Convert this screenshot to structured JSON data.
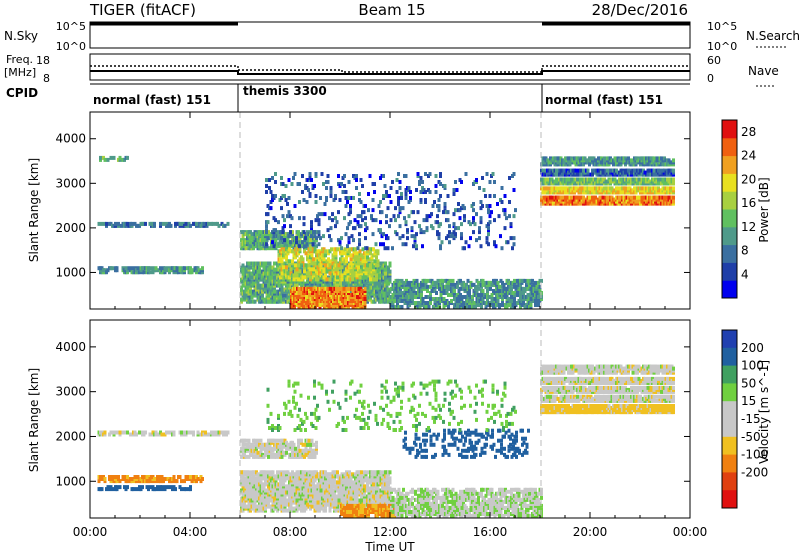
{
  "header": {
    "title": "TIGER (fitACF)",
    "beam": "Beam 15",
    "date": "28/Dec/2016"
  },
  "strips": {
    "nsky_label": "N.Sky",
    "nsearch_label": "N.Search",
    "nsky_ticks": [
      "10^5",
      "10^0"
    ],
    "nsearch_ticks": [
      "10^5",
      "10^0"
    ],
    "freq_label_1": "Freq.",
    "freq_label_2": "[MHz]",
    "freq_ticks": [
      "18",
      "8"
    ],
    "nave_label": "Nave",
    "nave_ticks": [
      "60",
      "0"
    ],
    "cpid_label": "CPID"
  },
  "cpid_segments": [
    {
      "label": "normal (fast) 151",
      "start_hour": 0
    },
    {
      "label": "themis 3300",
      "start_hour": 6
    },
    {
      "label": "normal (fast) 151",
      "start_hour": 18
    }
  ],
  "x_axis": {
    "label": "Time UT",
    "ticks": [
      "00:00",
      "04:00",
      "08:00",
      "12:00",
      "16:00",
      "20:00",
      "00:00"
    ]
  },
  "colors": {
    "power_scale": [
      "#0000ee",
      "#1f3fa8",
      "#3a6fa0",
      "#4f9a8a",
      "#60c060",
      "#a8d040",
      "#e8e020",
      "#f0a020",
      "#f06010",
      "#e01010"
    ],
    "velocity_scale": [
      "#2040b0",
      "#2060a0",
      "#40a060",
      "#70d040",
      "#c8c8c8",
      "#c8c8c8",
      "#f0c020",
      "#f08010",
      "#e04010",
      "#e01010"
    ]
  },
  "chart_data": [
    {
      "type": "heatmap",
      "title": "Power",
      "xlabel": "Time UT",
      "ylabel": "Slant Range [km]",
      "xlim_hours": [
        0,
        24
      ],
      "ylim": [
        180,
        4600
      ],
      "yticks": [
        1000,
        2000,
        3000,
        4000
      ],
      "colorbar": {
        "label": "Power [dB]",
        "ticks": [
          4,
          8,
          12,
          16,
          20,
          24,
          28
        ],
        "range": [
          0,
          30
        ]
      },
      "regions": [
        {
          "t0": 0.3,
          "t1": 5.5,
          "r0": 2000,
          "r1": 2080,
          "value": 8,
          "density": 0.5
        },
        {
          "t0": 0.3,
          "t1": 4.5,
          "r0": 960,
          "r1": 1060,
          "value": 10,
          "density": 0.5
        },
        {
          "t0": 0.3,
          "t1": 1.5,
          "r0": 3480,
          "r1": 3540,
          "value": 12,
          "density": 0.5
        },
        {
          "t0": 6.0,
          "t1": 9.0,
          "r0": 1500,
          "r1": 1900,
          "value": 12,
          "density": 0.55
        },
        {
          "t0": 6.0,
          "t1": 12.0,
          "r0": 300,
          "r1": 1200,
          "value": 12,
          "density": 0.6
        },
        {
          "t0": 8.0,
          "t1": 11.0,
          "r0": 180,
          "r1": 600,
          "value": 24,
          "density": 0.75
        },
        {
          "t0": 7.5,
          "t1": 11.5,
          "r0": 800,
          "r1": 1500,
          "value": 18,
          "density": 0.35
        },
        {
          "t0": 12.0,
          "t1": 18.0,
          "r0": 180,
          "r1": 800,
          "value": 10,
          "density": 0.45
        },
        {
          "t0": 7.0,
          "t1": 17.0,
          "r0": 1500,
          "r1": 3200,
          "value": 6,
          "density": 0.08
        },
        {
          "t0": 18.0,
          "t1": 23.3,
          "r0": 3380,
          "r1": 3550,
          "value": 10,
          "density": 0.7
        },
        {
          "t0": 18.0,
          "t1": 23.3,
          "r0": 3150,
          "r1": 3250,
          "value": 6,
          "density": 0.8
        },
        {
          "t0": 18.0,
          "t1": 23.3,
          "r0": 2950,
          "r1": 3050,
          "value": 14,
          "density": 0.8
        },
        {
          "t0": 18.0,
          "t1": 23.3,
          "r0": 2750,
          "r1": 2850,
          "value": 20,
          "density": 0.8
        },
        {
          "t0": 18.0,
          "t1": 23.3,
          "r0": 2500,
          "r1": 2650,
          "value": 24,
          "density": 0.85
        }
      ]
    },
    {
      "type": "heatmap",
      "title": "Velocity",
      "xlabel": "Time UT",
      "ylabel": "Slant Range [km]",
      "xlim_hours": [
        0,
        24
      ],
      "ylim": [
        180,
        4600
      ],
      "yticks": [
        1000,
        2000,
        3000,
        4000
      ],
      "colorbar": {
        "label": "Velocity [m s^-1]",
        "ticks": [
          200,
          100,
          50,
          15,
          -15,
          -50,
          -100,
          -200
        ]
      },
      "regions": [
        {
          "t0": 0.3,
          "t1": 5.5,
          "r0": 2000,
          "r1": 2080,
          "value": 0,
          "density": 0.5
        },
        {
          "t0": 0.3,
          "t1": 4.5,
          "r0": 960,
          "r1": 1060,
          "value": -60,
          "density": 0.5
        },
        {
          "t0": 0.3,
          "t1": 4.0,
          "r0": 780,
          "r1": 860,
          "value": 120,
          "density": 0.4
        },
        {
          "t0": 6.0,
          "t1": 9.0,
          "r0": 1500,
          "r1": 1900,
          "value": 0,
          "density": 0.55
        },
        {
          "t0": 6.0,
          "t1": 12.0,
          "r0": 300,
          "r1": 1200,
          "value": 0,
          "density": 0.6
        },
        {
          "t0": 10.0,
          "t1": 12.5,
          "r0": 180,
          "r1": 450,
          "value": -60,
          "density": 0.6
        },
        {
          "t0": 12.0,
          "t1": 18.0,
          "r0": 180,
          "r1": 800,
          "value": 10,
          "density": 0.45
        },
        {
          "t0": 12.5,
          "t1": 17.5,
          "r0": 1500,
          "r1": 2100,
          "value": 150,
          "density": 0.15
        },
        {
          "t0": 7.0,
          "t1": 17.0,
          "r0": 2100,
          "r1": 3200,
          "value": 40,
          "density": 0.06
        },
        {
          "t0": 18.0,
          "t1": 23.3,
          "r0": 3380,
          "r1": 3550,
          "value": 0,
          "density": 0.7
        },
        {
          "t0": 18.0,
          "t1": 23.3,
          "r0": 3150,
          "r1": 3250,
          "value": 0,
          "density": 0.8
        },
        {
          "t0": 18.0,
          "t1": 23.3,
          "r0": 2950,
          "r1": 3050,
          "value": 0,
          "density": 0.8
        },
        {
          "t0": 18.0,
          "t1": 23.3,
          "r0": 2750,
          "r1": 2850,
          "value": 0,
          "density": 0.8
        },
        {
          "t0": 18.0,
          "t1": 23.3,
          "r0": 2500,
          "r1": 2650,
          "value": -30,
          "density": 0.85
        }
      ]
    }
  ]
}
